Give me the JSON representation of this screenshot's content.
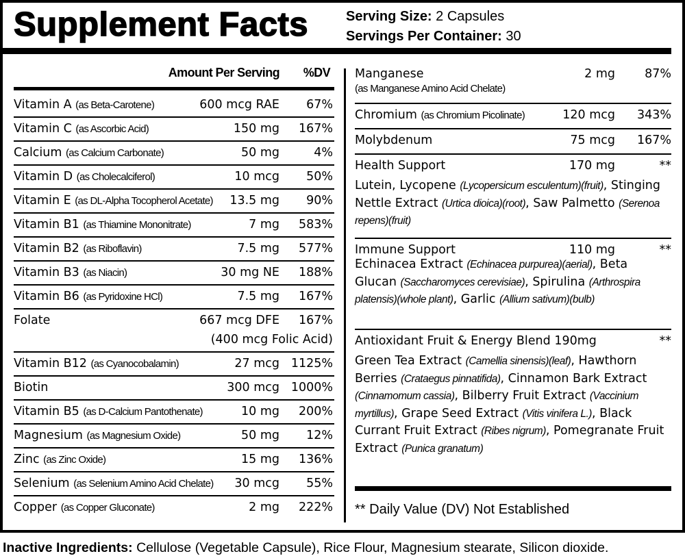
{
  "title": "Supplement Facts",
  "serving": {
    "size_label": "Serving Size:",
    "size_value": "2 Capsules",
    "per_container_label": "Servings Per Container:",
    "per_container_value": "30"
  },
  "columns": {
    "amount": "Amount Per Serving",
    "dv": "%DV"
  },
  "left_rows": [
    {
      "name": "Vitamin A",
      "qualifier": "(as Beta-Carotene)",
      "amount": "600 mcg RAE",
      "dv": "67%"
    },
    {
      "name": "Vitamin C",
      "qualifier": "(as Ascorbic Acid)",
      "amount": "150 mg",
      "dv": "167%"
    },
    {
      "name": "Calcium",
      "qualifier": "(as Calcium Carbonate)",
      "amount": "50 mg",
      "dv": "4%"
    },
    {
      "name": "Vitamin D",
      "qualifier": "(as Cholecalciferol)",
      "amount": "10 mcg",
      "dv": "50%"
    },
    {
      "name": "Vitamin E",
      "qualifier": "(as DL-Alpha Tocopherol Acetate)",
      "amount": "13.5 mg",
      "dv": "90%"
    },
    {
      "name": "Vitamin B1",
      "qualifier": "(as Thiamine Mononitrate)",
      "amount": "7 mg",
      "dv": "583%"
    },
    {
      "name": "Vitamin B2",
      "qualifier": "(as Riboflavin)",
      "amount": "7.5 mg",
      "dv": "577%"
    },
    {
      "name": "Vitamin B3",
      "qualifier": "(as Niacin)",
      "amount": "30 mg NE",
      "dv": "188%"
    },
    {
      "name": "Vitamin B6",
      "qualifier": "(as Pyridoxine HCl)",
      "amount": "7.5 mg",
      "dv": "167%"
    },
    {
      "name": "Folate",
      "qualifier": "",
      "amount": "667 mcg DFE",
      "dv": "167%",
      "sub": "(400 mcg Folic Acid)"
    },
    {
      "name": "Vitamin B12",
      "qualifier": "(as Cyanocobalamin)",
      "amount": "27 mcg",
      "dv": "1125%"
    },
    {
      "name": "Biotin",
      "qualifier": "",
      "amount": "300 mcg",
      "dv": "1000%"
    },
    {
      "name": "Vitamin B5",
      "qualifier": "(as D-Calcium Pantothenate)",
      "amount": "10 mg",
      "dv": "200%"
    },
    {
      "name": "Magnesium",
      "qualifier": "(as Magnesium Oxide)",
      "amount": "50 mg",
      "dv": "12%"
    },
    {
      "name": "Zinc",
      "qualifier": "(as Zinc Oxide)",
      "amount": "15 mg",
      "dv": "136%"
    },
    {
      "name": "Selenium",
      "qualifier": "(as Selenium Amino Acid Chelate)",
      "amount": "30 mcg",
      "dv": "55%"
    },
    {
      "name": "Copper",
      "qualifier": "(as Copper Gluconate)",
      "amount": "2 mg",
      "dv": "222%"
    }
  ],
  "right_rows": [
    {
      "name": "Manganese",
      "qualifier": "(as Manganese Amino Acid Chelate)",
      "amount": "2 mg",
      "dv": "87%"
    },
    {
      "name": "Chromium",
      "qualifier": "(as Chromium Picolinate)",
      "amount": "120 mcg",
      "dv": "343%"
    },
    {
      "name": "Molybdenum",
      "qualifier": "",
      "amount": "75 mcg",
      "dv": "167%"
    }
  ],
  "blends": [
    {
      "name": "Health Support",
      "amount": "170 mg",
      "dv": "**",
      "segments": [
        {
          "t": "Lutein, Lycopene "
        },
        {
          "t": "(Lycopersicum esculentum)(fruit)",
          "i": true
        },
        {
          "t": ", Stinging Nettle Extract "
        },
        {
          "t": "(Urtica dioica)(root)",
          "i": true
        },
        {
          "t": ", Saw Palmetto "
        },
        {
          "t": "(Serenoa repens)(fruit)",
          "i": true
        }
      ]
    },
    {
      "name": "Immune Support",
      "amount": "110 mg",
      "dv": "**",
      "segments": [
        {
          "t": "Echinacea Extract "
        },
        {
          "t": "(Echinacea purpurea)(aerial)",
          "i": true
        },
        {
          "t": ", Beta Glucan "
        },
        {
          "t": "(Saccharomyces cerevisiae)",
          "i": true
        },
        {
          "t": ", Spirulina "
        },
        {
          "t": "(Arthrospira platensis)(whole plant)",
          "i": true
        },
        {
          "t": ", Garlic "
        },
        {
          "t": "(Allium sativum)(bulb)",
          "i": true
        }
      ]
    },
    {
      "name": "Antioxidant Fruit & Energy Blend 190mg",
      "amount": "",
      "dv": "**",
      "segments": [
        {
          "t": "Green Tea Extract "
        },
        {
          "t": "(Camellia sinensis)(leaf)",
          "i": true
        },
        {
          "t": ", Hawthorn Berries "
        },
        {
          "t": "(Crataegus pinnatifida)",
          "i": true
        },
        {
          "t": ", Cinnamon Bark Extract "
        },
        {
          "t": "(Cinnamomum cassia)",
          "i": true
        },
        {
          "t": ", Bilberry Fruit Extract "
        },
        {
          "t": "(Vaccinium myrtillus)",
          "i": true
        },
        {
          "t": ", Grape Seed Extract "
        },
        {
          "t": "(Vitis vinifera L.)",
          "i": true
        },
        {
          "t": ", Black Currant Fruit Extract "
        },
        {
          "t": "(Ribes nigrum)",
          "i": true
        },
        {
          "t": ", Pomegranate Fruit Extract "
        },
        {
          "t": "(Punica granatum)",
          "i": true
        }
      ]
    }
  ],
  "footnote": "** Daily Value (DV) Not Established",
  "inactive": {
    "label": "Inactive Ingredients:",
    "value": "Cellulose (Vegetable Capsule), Rice Flour, Magnesium stearate, Silicon dioxide."
  }
}
